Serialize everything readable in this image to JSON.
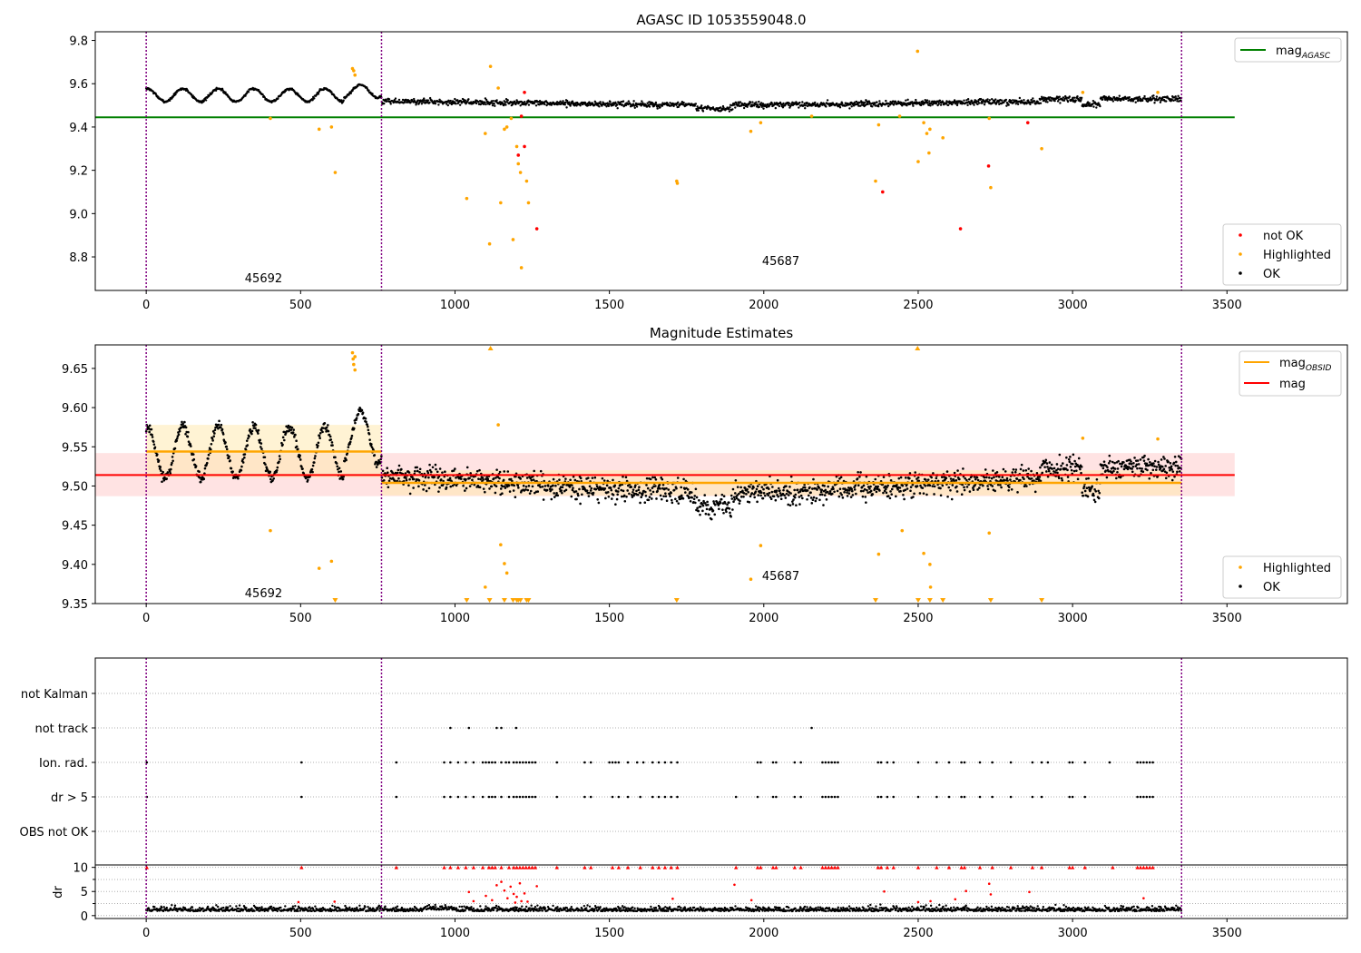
{
  "colors": {
    "ok": "#000000",
    "not_ok": "#ff0000",
    "highlighted": "#ffa500",
    "agasc_line": "#008000",
    "mag_line": "#ff0000",
    "obsid_line": "#ffa500",
    "obsid_band": "#ffe9b0",
    "mag_band": "#ffd0d0",
    "obsid_boundary": "#800080"
  },
  "chart_data": [
    {
      "id": "agasc",
      "type": "scatter",
      "title": "AGASC ID 1053559048.0",
      "xlim": [
        -165,
        3890
      ],
      "ylim": [
        8.645,
        9.84
      ],
      "xticks": [
        "0",
        "500",
        "1000",
        "1500",
        "2000",
        "2500",
        "3000",
        "3500"
      ],
      "yticks": [
        "8.8",
        "9.0",
        "9.2",
        "9.4",
        "9.6",
        "9.8"
      ],
      "grid": false,
      "obsid_boundaries": [
        0,
        762,
        3353
      ],
      "obsid_labels": [
        {
          "text": "45692",
          "x": 380,
          "y": 8.7
        },
        {
          "text": "45687",
          "x": 2055,
          "y": 8.78
        }
      ],
      "agasc_mag": 9.445,
      "agasc_line_x": [
        -165,
        3525
      ],
      "legend_top": {
        "position": "top-right",
        "entries": [
          {
            "label": "mag",
            "sub": "AGASC"
          }
        ]
      },
      "legend_bottom": {
        "position": "lower-right",
        "entries": [
          {
            "label": "not OK"
          },
          {
            "label": "Highlighted"
          },
          {
            "label": "OK"
          }
        ]
      },
      "highlighted_points": [
        [
          402,
          9.44
        ],
        [
          560,
          9.39
        ],
        [
          600,
          9.4
        ],
        [
          612,
          9.19
        ],
        [
          668,
          9.67
        ],
        [
          672,
          9.66
        ],
        [
          676,
          9.64
        ],
        [
          1038,
          9.07
        ],
        [
          1098,
          9.37
        ],
        [
          1112,
          8.86
        ],
        [
          1115,
          9.68
        ],
        [
          1140,
          9.58
        ],
        [
          1148,
          9.05
        ],
        [
          1160,
          9.39
        ],
        [
          1168,
          9.4
        ],
        [
          1182,
          9.44
        ],
        [
          1188,
          8.88
        ],
        [
          1200,
          9.31
        ],
        [
          1205,
          9.23
        ],
        [
          1212,
          9.19
        ],
        [
          1215,
          8.75
        ],
        [
          1232,
          9.15
        ],
        [
          1238,
          9.05
        ],
        [
          1718,
          9.15
        ],
        [
          1720,
          9.14
        ],
        [
          1958,
          9.38
        ],
        [
          1990,
          9.42
        ],
        [
          2155,
          9.45
        ],
        [
          2362,
          9.15
        ],
        [
          2372,
          9.41
        ],
        [
          2440,
          9.45
        ],
        [
          2498,
          9.75
        ],
        [
          2500,
          9.24
        ],
        [
          2518,
          9.42
        ],
        [
          2528,
          9.37
        ],
        [
          2535,
          9.28
        ],
        [
          2538,
          9.39
        ],
        [
          2580,
          9.35
        ],
        [
          2730,
          9.44
        ],
        [
          2735,
          9.12
        ],
        [
          2900,
          9.3
        ],
        [
          3033,
          9.56
        ],
        [
          3276,
          9.56
        ]
      ],
      "not_ok_points": [
        [
          1205,
          9.27
        ],
        [
          1215,
          9.45
        ],
        [
          1225,
          9.31
        ],
        [
          1225,
          9.56
        ],
        [
          1265,
          8.93
        ],
        [
          2385,
          9.1
        ],
        [
          2637,
          8.93
        ],
        [
          2728,
          9.22
        ],
        [
          2855,
          9.42
        ]
      ]
    },
    {
      "id": "estimates",
      "type": "scatter",
      "title": "Magnitude Estimates",
      "xlim": [
        -165,
        3890
      ],
      "ylim": [
        9.35,
        9.68
      ],
      "xticks": [
        "0",
        "500",
        "1000",
        "1500",
        "2000",
        "2500",
        "3000",
        "3500"
      ],
      "yticks": [
        "9.35",
        "9.40",
        "9.45",
        "9.50",
        "9.55",
        "9.60",
        "9.65"
      ],
      "grid": false,
      "obsid_boundaries": [
        0,
        762,
        3353
      ],
      "obsid_labels": [
        {
          "text": "45692",
          "x": 380,
          "y": 9.363
        },
        {
          "text": "45687",
          "x": 2055,
          "y": 9.385
        }
      ],
      "mag": 9.514,
      "mag_band": [
        9.487,
        9.542
      ],
      "mag_line_x": [
        -165,
        3525
      ],
      "obsid_mags": [
        {
          "x": [
            0,
            762
          ],
          "mag": 9.544,
          "band": [
            9.511,
            9.578
          ]
        },
        {
          "x": [
            762,
            3353
          ],
          "mag": 9.504,
          "band": [
            9.488,
            9.52
          ]
        }
      ],
      "legend_top": {
        "position": "top-right",
        "entries": [
          {
            "label": "mag",
            "sub": "OBSID"
          },
          {
            "label": "mag"
          }
        ]
      },
      "legend_bottom": {
        "position": "lower-right",
        "entries": [
          {
            "label": "Highlighted"
          },
          {
            "label": "OK"
          }
        ]
      },
      "highlighted_points": [
        [
          402,
          9.443
        ],
        [
          560,
          9.395
        ],
        [
          600,
          9.404
        ],
        [
          668,
          9.67
        ],
        [
          670,
          9.662
        ],
        [
          672,
          9.655
        ],
        [
          676,
          9.648
        ],
        [
          676,
          9.665
        ],
        [
          1140,
          9.578
        ],
        [
          1098,
          9.371
        ],
        [
          1148,
          9.425
        ],
        [
          1160,
          9.401
        ],
        [
          1168,
          9.389
        ],
        [
          1958,
          9.381
        ],
        [
          1990,
          9.424
        ],
        [
          2372,
          9.413
        ],
        [
          2448,
          9.443
        ],
        [
          2518,
          9.414
        ],
        [
          2538,
          9.4
        ],
        [
          2540,
          9.371
        ],
        [
          2730,
          9.44
        ],
        [
          3033,
          9.561
        ],
        [
          3276,
          9.56
        ]
      ],
      "below_markers_x": [
        612,
        1038,
        1112,
        1160,
        1188,
        1200,
        1205,
        1212,
        1232,
        1238,
        1718,
        2362,
        2500,
        2538,
        2580,
        2735,
        2900
      ],
      "above_markers_x": [
        1115,
        2498
      ]
    },
    {
      "id": "flags",
      "type": "scatter",
      "xlim": [
        -165,
        3890
      ],
      "categories": [
        "not Kalman",
        "not track",
        "Ion. rad.",
        "dr > 5",
        "OBS not OK"
      ],
      "grid": true,
      "obsid_boundaries": [
        0,
        762,
        3353
      ],
      "flag_points": {
        "not track": [
          985,
          1045,
          1135,
          1150,
          1198,
          2155
        ],
        "Ion. rad.": [
          2,
          503,
          810,
          965,
          985,
          1010,
          1035,
          1060,
          1090,
          1100,
          1110,
          1120,
          1130,
          1150,
          1165,
          1175,
          1190,
          1200,
          1210,
          1220,
          1230,
          1240,
          1250,
          1260,
          1330,
          1420,
          1440,
          1500,
          1510,
          1520,
          1530,
          1560,
          1590,
          1610,
          1640,
          1660,
          1680,
          1700,
          1720,
          1980,
          1990,
          2030,
          2040,
          2100,
          2120,
          2190,
          2200,
          2210,
          2220,
          2230,
          2240,
          2370,
          2380,
          2400,
          2420,
          2500,
          2560,
          2600,
          2640,
          2650,
          2700,
          2740,
          2800,
          2870,
          2900,
          2920,
          2990,
          3000,
          3040,
          3120,
          3210,
          3220,
          3230,
          3240,
          3250,
          3260
        ],
        "dr > 5": [
          2,
          503,
          810,
          965,
          985,
          1010,
          1035,
          1060,
          1090,
          1110,
          1120,
          1130,
          1150,
          1175,
          1190,
          1200,
          1210,
          1220,
          1230,
          1240,
          1250,
          1260,
          1330,
          1420,
          1440,
          1510,
          1530,
          1560,
          1600,
          1640,
          1660,
          1680,
          1700,
          1720,
          1910,
          1980,
          2030,
          2040,
          2100,
          2120,
          2190,
          2200,
          2210,
          2220,
          2230,
          2240,
          2370,
          2380,
          2400,
          2420,
          2500,
          2560,
          2600,
          2640,
          2650,
          2700,
          2740,
          2800,
          2870,
          2900,
          2990,
          3000,
          3040,
          3210,
          3220,
          3230,
          3240,
          3250,
          3260
        ]
      }
    },
    {
      "id": "dr",
      "type": "scatter",
      "ylabel": "dr",
      "xlim": [
        -165,
        3890
      ],
      "ylim": [
        -0.6,
        10.5
      ],
      "yticks": [
        "0",
        "5",
        "10"
      ],
      "xticks": [
        "0",
        "500",
        "1000",
        "1500",
        "2000",
        "2500",
        "3000",
        "3500"
      ],
      "grid": true,
      "obsid_boundaries": [
        0,
        762,
        3353
      ],
      "clipped_markers_x": [
        2,
        503,
        810,
        965,
        985,
        1010,
        1035,
        1060,
        1090,
        1110,
        1120,
        1130,
        1150,
        1175,
        1190,
        1200,
        1210,
        1220,
        1230,
        1240,
        1250,
        1260,
        1330,
        1420,
        1440,
        1510,
        1530,
        1560,
        1600,
        1640,
        1660,
        1680,
        1700,
        1720,
        1910,
        1980,
        1990,
        2030,
        2040,
        2100,
        2120,
        2190,
        2200,
        2210,
        2220,
        2230,
        2240,
        2370,
        2380,
        2400,
        2420,
        2500,
        2560,
        2600,
        2640,
        2650,
        2700,
        2740,
        2800,
        2870,
        2900,
        2990,
        3000,
        3040,
        3130,
        3210,
        3220,
        3230,
        3240,
        3250,
        3260
      ],
      "red_points": [
        [
          493,
          2.8
        ],
        [
          610,
          2.9
        ],
        [
          1045,
          4.9
        ],
        [
          1060,
          3.0
        ],
        [
          1100,
          4.1
        ],
        [
          1120,
          3.2
        ],
        [
          1135,
          6.3
        ],
        [
          1150,
          7.0
        ],
        [
          1160,
          5.2
        ],
        [
          1170,
          3.6
        ],
        [
          1180,
          6.0
        ],
        [
          1190,
          4.5
        ],
        [
          1195,
          2.7
        ],
        [
          1200,
          3.9
        ],
        [
          1210,
          6.7
        ],
        [
          1215,
          3.0
        ],
        [
          1225,
          4.6
        ],
        [
          1235,
          2.9
        ],
        [
          1265,
          6.1
        ],
        [
          1705,
          3.5
        ],
        [
          1905,
          6.4
        ],
        [
          1960,
          3.2
        ],
        [
          2390,
          5.0
        ],
        [
          2500,
          2.8
        ],
        [
          2540,
          3.0
        ],
        [
          2620,
          3.4
        ],
        [
          2655,
          5.1
        ],
        [
          2730,
          6.6
        ],
        [
          2735,
          4.4
        ],
        [
          2860,
          4.9
        ],
        [
          3230,
          3.6
        ]
      ]
    }
  ]
}
